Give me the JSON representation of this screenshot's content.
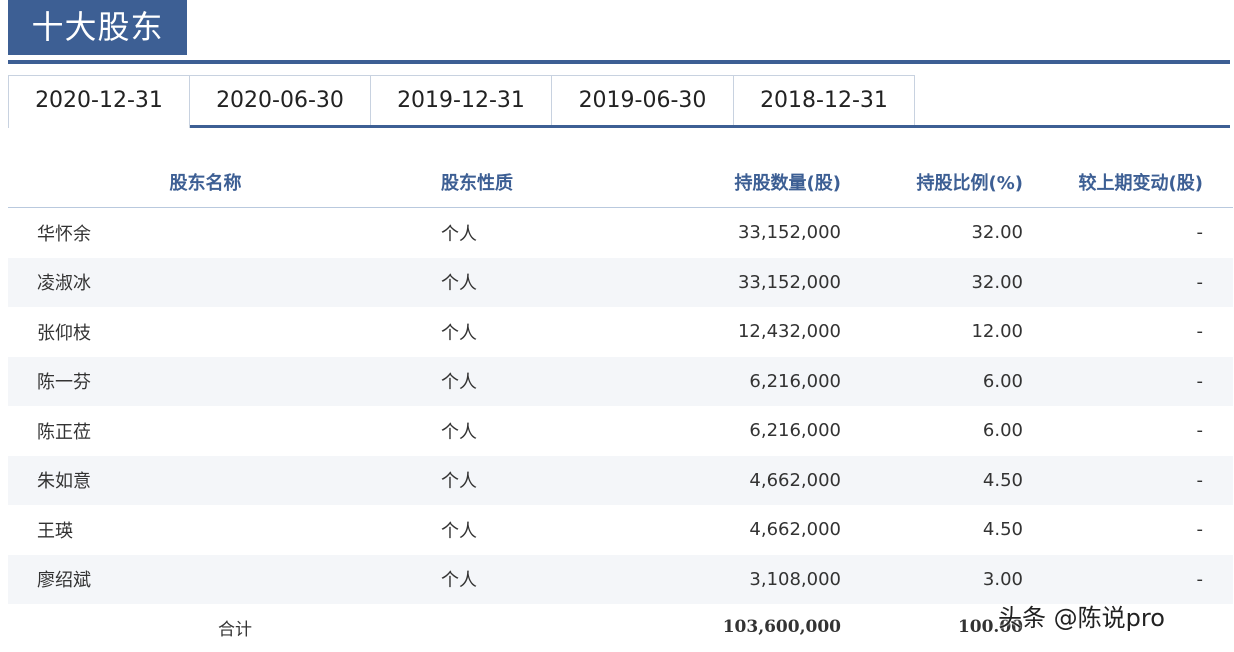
{
  "header": {
    "title": "十大股东"
  },
  "tabs": [
    {
      "label": "2020-12-31",
      "active": true
    },
    {
      "label": "2020-06-30"
    },
    {
      "label": "2019-12-31"
    },
    {
      "label": "2019-06-30"
    },
    {
      "label": "2018-12-31"
    }
  ],
  "table": {
    "columns": [
      "股东名称",
      "股东性质",
      "持股数量(股)",
      "持股比例(%)",
      "较上期变动(股)"
    ],
    "rows": [
      [
        "华怀余",
        "个人",
        "33,152,000",
        "32.00",
        "-"
      ],
      [
        "凌淑冰",
        "个人",
        "33,152,000",
        "32.00",
        "-"
      ],
      [
        "张仰枝",
        "个人",
        "12,432,000",
        "12.00",
        "-"
      ],
      [
        "陈一芬",
        "个人",
        "6,216,000",
        "6.00",
        "-"
      ],
      [
        "陈正莅",
        "个人",
        "6,216,000",
        "6.00",
        "-"
      ],
      [
        "朱如意",
        "个人",
        "4,662,000",
        "4.50",
        "-"
      ],
      [
        "王瑛",
        "个人",
        "4,662,000",
        "4.50",
        "-"
      ],
      [
        "廖绍斌",
        "个人",
        "3,108,000",
        "3.00",
        "-"
      ]
    ],
    "total": {
      "label": "合计",
      "shares": "103,600,000",
      "ratio": "100.00"
    }
  },
  "watermark": {
    "text": "头条 @陈说pro"
  }
}
